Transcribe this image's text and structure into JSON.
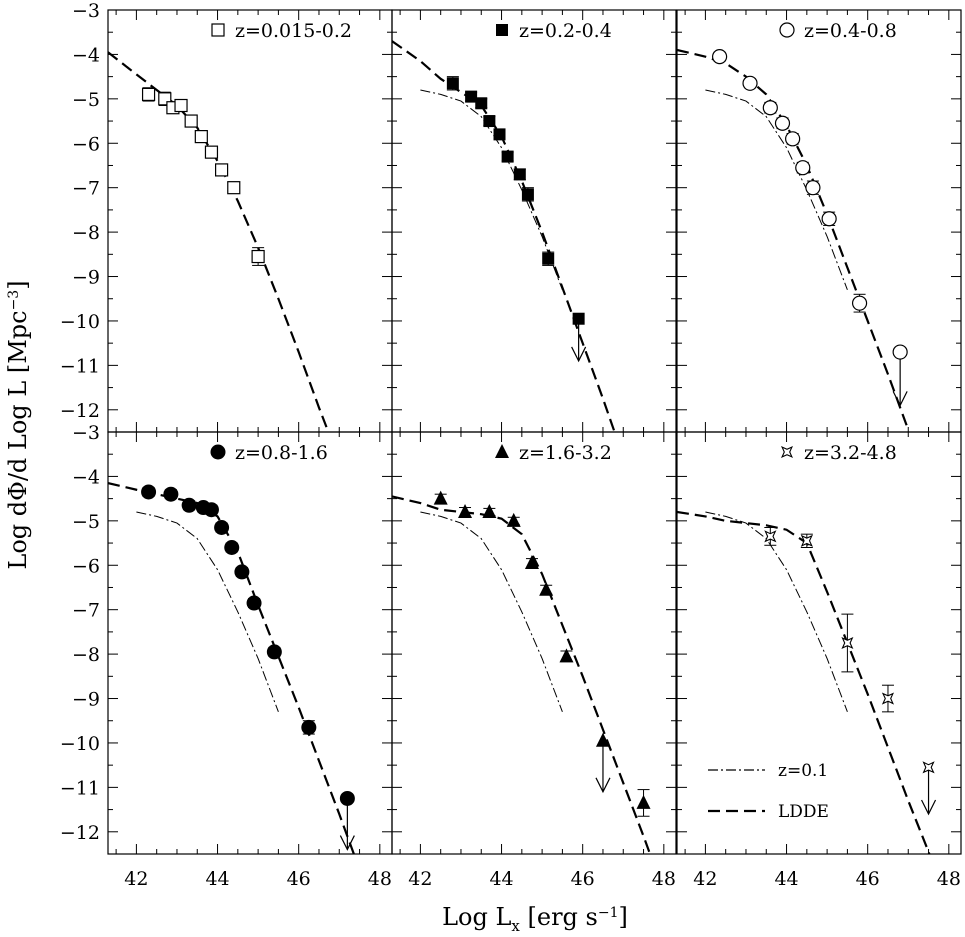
{
  "figure": {
    "xlabel_main": "Log L",
    "xlabel_sub": "x",
    "xlabel_tail": " [erg s",
    "xlabel_sup": "−1",
    "xlabel_end": "]",
    "ylabel_main": "Log dΦ/d Log L [Mpc",
    "ylabel_sup": "−3",
    "ylabel_end": "]",
    "legend": [
      {
        "label": "z=0.1",
        "style": "dashdot"
      },
      {
        "label": "LDDE",
        "style": "dashed"
      }
    ]
  },
  "chart_data": [
    {
      "type": "scatter",
      "panel": "z=0.015-0.2",
      "marker": "open-square",
      "xlim": [
        41.3,
        48.3
      ],
      "ylim": [
        -12.5,
        -3
      ],
      "xticks": [
        "42",
        "44",
        "46",
        "48"
      ],
      "yticks": [
        "-3",
        "-4",
        "-5",
        "-6",
        "-7",
        "-8",
        "-9",
        "-10",
        "-11",
        "-12"
      ],
      "points": [
        {
          "x": 42.3,
          "y": -4.9,
          "err": 0.15
        },
        {
          "x": 42.7,
          "y": -5.0,
          "err": 0.15
        },
        {
          "x": 42.9,
          "y": -5.2,
          "err": 0.12
        },
        {
          "x": 43.1,
          "y": -5.15,
          "err": 0.1
        },
        {
          "x": 43.35,
          "y": -5.5,
          "err": 0.08
        },
        {
          "x": 43.6,
          "y": -5.85,
          "err": 0.1
        },
        {
          "x": 43.85,
          "y": -6.2,
          "err": 0.1
        },
        {
          "x": 44.1,
          "y": -6.6,
          "err": 0.12
        },
        {
          "x": 44.4,
          "y": -7.0,
          "err": 0.13
        },
        {
          "x": 45.0,
          "y": -8.55,
          "err": 0.2
        }
      ],
      "upper_limits": [],
      "ldde": [
        [
          41.3,
          -3.95
        ],
        [
          42.0,
          -4.45
        ],
        [
          42.5,
          -4.8
        ],
        [
          43.0,
          -5.15
        ],
        [
          43.5,
          -5.65
        ],
        [
          44.0,
          -6.4
        ],
        [
          44.5,
          -7.3
        ],
        [
          45.0,
          -8.35
        ],
        [
          45.5,
          -9.5
        ],
        [
          46.0,
          -10.7
        ],
        [
          46.5,
          -11.95
        ],
        [
          46.9,
          -12.9
        ]
      ],
      "z01": []
    },
    {
      "type": "scatter",
      "panel": "z=0.2-0.4",
      "marker": "filled-square",
      "xlim": [
        41.3,
        48.3
      ],
      "ylim": [
        -12.5,
        -3
      ],
      "xticks": [
        "42",
        "44",
        "46",
        "48"
      ],
      "yticks": [
        "-3",
        "-4",
        "-5",
        "-6",
        "-7",
        "-8",
        "-9",
        "-10",
        "-11",
        "-12"
      ],
      "points": [
        {
          "x": 42.8,
          "y": -4.65,
          "err": 0.15
        },
        {
          "x": 43.25,
          "y": -4.95,
          "err": 0.1
        },
        {
          "x": 43.5,
          "y": -5.1,
          "err": 0.1
        },
        {
          "x": 43.7,
          "y": -5.5,
          "err": 0.1
        },
        {
          "x": 43.95,
          "y": -5.8,
          "err": 0.1
        },
        {
          "x": 44.15,
          "y": -6.3,
          "err": 0.1
        },
        {
          "x": 44.45,
          "y": -6.7,
          "err": 0.12
        },
        {
          "x": 44.65,
          "y": -7.15,
          "err": 0.15
        },
        {
          "x": 45.15,
          "y": -8.6,
          "err": 0.15
        },
        {
          "x": 45.9,
          "y": -9.95,
          "err": 0
        }
      ],
      "upper_limits": [
        {
          "x": 45.9,
          "y": -9.95,
          "to": -10.9
        }
      ],
      "ldde": [
        [
          41.3,
          -3.7
        ],
        [
          42.0,
          -4.15
        ],
        [
          42.5,
          -4.55
        ],
        [
          43.0,
          -4.85
        ],
        [
          43.5,
          -5.15
        ],
        [
          44.0,
          -5.85
        ],
        [
          44.5,
          -6.85
        ],
        [
          45.0,
          -8.0
        ],
        [
          45.5,
          -9.25
        ],
        [
          46.0,
          -10.5
        ],
        [
          46.5,
          -11.75
        ],
        [
          46.9,
          -12.8
        ]
      ],
      "z01": [
        [
          42.0,
          -4.8
        ],
        [
          42.5,
          -4.9
        ],
        [
          43.0,
          -5.05
        ],
        [
          43.5,
          -5.4
        ],
        [
          44.0,
          -6.1
        ],
        [
          44.5,
          -7.05
        ],
        [
          45.0,
          -8.1
        ],
        [
          45.5,
          -9.3
        ]
      ]
    },
    {
      "type": "scatter",
      "panel": "z=0.4-0.8",
      "marker": "open-circle",
      "xlim": [
        41.3,
        48.3
      ],
      "ylim": [
        -12.5,
        -3
      ],
      "xticks": [
        "42",
        "44",
        "46",
        "48"
      ],
      "yticks": [
        "-3",
        "-4",
        "-5",
        "-6",
        "-7",
        "-8",
        "-9",
        "-10",
        "-11",
        "-12"
      ],
      "points": [
        {
          "x": 42.35,
          "y": -4.05,
          "err": 0.1
        },
        {
          "x": 43.1,
          "y": -4.65,
          "err": 0.1
        },
        {
          "x": 43.6,
          "y": -5.2,
          "err": 0.12
        },
        {
          "x": 43.9,
          "y": -5.55,
          "err": 0.12
        },
        {
          "x": 44.15,
          "y": -5.9,
          "err": 0.12
        },
        {
          "x": 44.4,
          "y": -6.55,
          "err": 0.12
        },
        {
          "x": 44.65,
          "y": -7.0,
          "err": 0.15
        },
        {
          "x": 45.05,
          "y": -7.7,
          "err": 0.15
        },
        {
          "x": 45.8,
          "y": -9.6,
          "err": 0.2
        },
        {
          "x": 46.8,
          "y": -10.7,
          "err": 0
        }
      ],
      "upper_limits": [
        {
          "x": 46.8,
          "y": -10.7,
          "to": -11.9
        }
      ],
      "ldde": [
        [
          41.3,
          -3.9
        ],
        [
          42.0,
          -4.05
        ],
        [
          42.5,
          -4.2
        ],
        [
          43.0,
          -4.5
        ],
        [
          43.5,
          -4.9
        ],
        [
          44.0,
          -5.6
        ],
        [
          44.5,
          -6.5
        ],
        [
          45.0,
          -7.6
        ],
        [
          45.5,
          -8.8
        ],
        [
          46.0,
          -10.0
        ],
        [
          46.5,
          -11.2
        ],
        [
          47.0,
          -12.45
        ]
      ],
      "z01": [
        [
          42.0,
          -4.8
        ],
        [
          42.5,
          -4.9
        ],
        [
          43.0,
          -5.05
        ],
        [
          43.5,
          -5.4
        ],
        [
          44.0,
          -6.1
        ],
        [
          44.5,
          -7.05
        ],
        [
          45.0,
          -8.1
        ],
        [
          45.5,
          -9.3
        ]
      ]
    },
    {
      "type": "scatter",
      "panel": "z=0.8-1.6",
      "marker": "filled-circle",
      "xlim": [
        41.3,
        48.3
      ],
      "ylim": [
        -12.5,
        -3
      ],
      "xticks": [
        "42",
        "44",
        "46",
        "48"
      ],
      "yticks": [
        "-3",
        "-4",
        "-5",
        "-6",
        "-7",
        "-8",
        "-9",
        "-10",
        "-11",
        "-12"
      ],
      "points": [
        {
          "x": 42.3,
          "y": -4.35,
          "err": 0.1
        },
        {
          "x": 42.85,
          "y": -4.4,
          "err": 0.1
        },
        {
          "x": 43.3,
          "y": -4.65,
          "err": 0.1
        },
        {
          "x": 43.65,
          "y": -4.7,
          "err": 0.1
        },
        {
          "x": 43.85,
          "y": -4.75,
          "err": 0.1
        },
        {
          "x": 44.1,
          "y": -5.15,
          "err": 0.1
        },
        {
          "x": 44.35,
          "y": -5.6,
          "err": 0.1
        },
        {
          "x": 44.6,
          "y": -6.15,
          "err": 0.1
        },
        {
          "x": 44.9,
          "y": -6.85,
          "err": 0.1
        },
        {
          "x": 45.4,
          "y": -7.95,
          "err": 0.1
        },
        {
          "x": 46.25,
          "y": -9.65,
          "err": 0.15
        },
        {
          "x": 47.2,
          "y": -11.25,
          "err": 0
        }
      ],
      "upper_limits": [
        {
          "x": 47.2,
          "y": -11.25,
          "to": -12.4
        }
      ],
      "ldde": [
        [
          41.3,
          -4.15
        ],
        [
          42.0,
          -4.3
        ],
        [
          42.5,
          -4.4
        ],
        [
          43.0,
          -4.5
        ],
        [
          43.5,
          -4.6
        ],
        [
          44.0,
          -4.9
        ],
        [
          44.5,
          -5.7
        ],
        [
          45.0,
          -6.9
        ],
        [
          45.5,
          -8.05
        ],
        [
          46.0,
          -9.2
        ],
        [
          46.5,
          -10.4
        ],
        [
          47.0,
          -11.6
        ],
        [
          47.4,
          -12.6
        ]
      ],
      "z01": [
        [
          42.0,
          -4.8
        ],
        [
          42.5,
          -4.9
        ],
        [
          43.0,
          -5.05
        ],
        [
          43.5,
          -5.4
        ],
        [
          44.0,
          -6.1
        ],
        [
          44.5,
          -7.05
        ],
        [
          45.0,
          -8.1
        ],
        [
          45.5,
          -9.3
        ]
      ]
    },
    {
      "type": "scatter",
      "panel": "z=1.6-3.2",
      "marker": "filled-triangle",
      "xlim": [
        41.3,
        48.3
      ],
      "ylim": [
        -12.5,
        -3
      ],
      "xticks": [
        "42",
        "44",
        "46",
        "48"
      ],
      "yticks": [
        "-3",
        "-4",
        "-5",
        "-6",
        "-7",
        "-8",
        "-9",
        "-10",
        "-11",
        "-12"
      ],
      "points": [
        {
          "x": 42.5,
          "y": -4.5,
          "err": 0.1
        },
        {
          "x": 43.1,
          "y": -4.8,
          "err": 0.1
        },
        {
          "x": 43.7,
          "y": -4.8,
          "err": 0.08
        },
        {
          "x": 44.3,
          "y": -5.0,
          "err": 0.08
        },
        {
          "x": 44.75,
          "y": -5.95,
          "err": 0.1
        },
        {
          "x": 45.1,
          "y": -6.55,
          "err": 0.1
        },
        {
          "x": 45.6,
          "y": -8.05,
          "err": 0.12
        },
        {
          "x": 46.5,
          "y": -9.95,
          "err": 0
        },
        {
          "x": 47.5,
          "y": -11.35,
          "err": 0.3
        }
      ],
      "upper_limits": [
        {
          "x": 46.5,
          "y": -9.95,
          "to": -11.1
        }
      ],
      "ldde": [
        [
          41.3,
          -4.45
        ],
        [
          42.0,
          -4.6
        ],
        [
          42.5,
          -4.75
        ],
        [
          43.0,
          -4.8
        ],
        [
          43.5,
          -4.85
        ],
        [
          44.0,
          -4.95
        ],
        [
          44.5,
          -5.3
        ],
        [
          45.0,
          -6.2
        ],
        [
          45.5,
          -7.35
        ],
        [
          46.0,
          -8.5
        ],
        [
          46.5,
          -9.7
        ],
        [
          47.0,
          -10.9
        ],
        [
          47.5,
          -12.1
        ],
        [
          47.7,
          -12.6
        ]
      ],
      "z01": [
        [
          42.0,
          -4.8
        ],
        [
          42.5,
          -4.9
        ],
        [
          43.0,
          -5.05
        ],
        [
          43.5,
          -5.4
        ],
        [
          44.0,
          -6.1
        ],
        [
          44.5,
          -7.05
        ],
        [
          45.0,
          -8.1
        ],
        [
          45.5,
          -9.3
        ]
      ]
    },
    {
      "type": "scatter",
      "panel": "z=3.2-4.8",
      "marker": "open-star",
      "xlim": [
        41.3,
        48.3
      ],
      "ylim": [
        -12.5,
        -3
      ],
      "xticks": [
        "42",
        "44",
        "46",
        "48"
      ],
      "yticks": [
        "-3",
        "-4",
        "-5",
        "-6",
        "-7",
        "-8",
        "-9",
        "-10",
        "-11",
        "-12"
      ],
      "points": [
        {
          "x": 43.6,
          "y": -5.35,
          "err": 0.2
        },
        {
          "x": 44.5,
          "y": -5.45,
          "err": 0.15
        },
        {
          "x": 45.5,
          "y": -7.75,
          "err": 0.65
        },
        {
          "x": 46.5,
          "y": -9.0,
          "err": 0.3
        },
        {
          "x": 47.5,
          "y": -10.55,
          "err": 0
        }
      ],
      "upper_limits": [
        {
          "x": 47.5,
          "y": -10.55,
          "to": -11.6
        }
      ],
      "ldde": [
        [
          41.3,
          -4.8
        ],
        [
          42.0,
          -4.9
        ],
        [
          42.5,
          -5.0
        ],
        [
          43.0,
          -5.05
        ],
        [
          43.5,
          -5.1
        ],
        [
          44.0,
          -5.2
        ],
        [
          44.5,
          -5.5
        ],
        [
          45.0,
          -6.6
        ],
        [
          45.5,
          -7.75
        ],
        [
          46.0,
          -8.9
        ],
        [
          46.5,
          -10.1
        ],
        [
          47.0,
          -11.3
        ],
        [
          47.5,
          -12.45
        ],
        [
          47.6,
          -12.7
        ]
      ],
      "z01": [
        [
          42.0,
          -4.8
        ],
        [
          42.5,
          -4.9
        ],
        [
          43.0,
          -5.05
        ],
        [
          43.5,
          -5.4
        ],
        [
          44.0,
          -6.1
        ],
        [
          44.5,
          -7.05
        ],
        [
          45.0,
          -8.1
        ],
        [
          45.5,
          -9.3
        ]
      ]
    }
  ]
}
